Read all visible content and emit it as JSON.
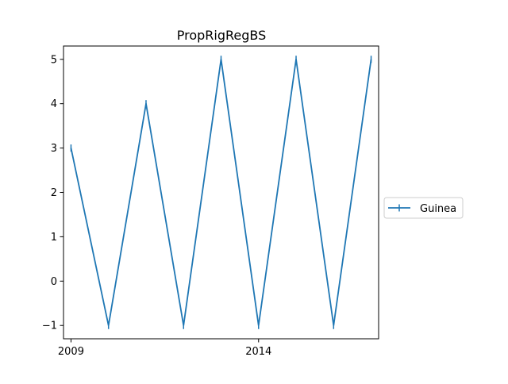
{
  "chart_data": {
    "type": "line",
    "title": "PropRigRegBS",
    "xlabel": "",
    "ylabel": "",
    "x": [
      2009,
      2010,
      2011,
      2012,
      2013,
      2014,
      2015,
      2016,
      2017
    ],
    "series": [
      {
        "name": "Guinea",
        "values": [
          3,
          -1,
          4,
          -1,
          5,
          -1,
          5,
          -1,
          5
        ],
        "color": "#1f77b4",
        "marker": "|"
      }
    ],
    "xlim": [
      2008.8,
      2017.2
    ],
    "ylim": [
      -1.3,
      5.3
    ],
    "xticks": [
      2009,
      2014
    ],
    "yticks": [
      -1,
      0,
      1,
      2,
      3,
      4,
      5
    ],
    "ytick_labels": [
      "−1",
      "0",
      "1",
      "2",
      "3",
      "4",
      "5"
    ],
    "grid": false,
    "legend_position": "outside-right"
  }
}
